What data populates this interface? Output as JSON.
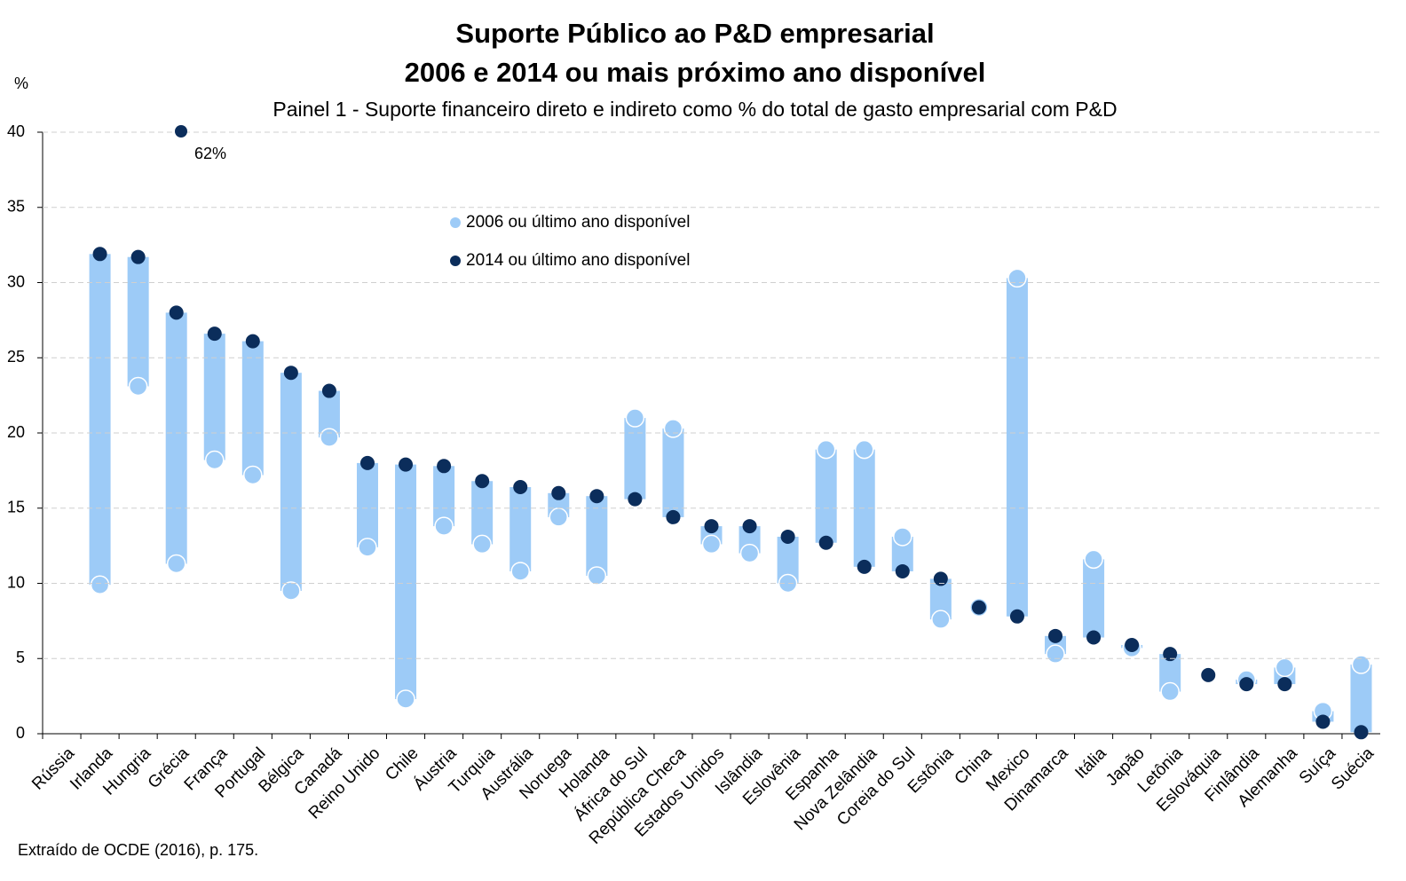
{
  "chart_data": {
    "type": "dumbbell",
    "title": "Suporte Público ao P&D empresarial",
    "title_line2": "2006 e 2014 ou mais próximo ano disponível",
    "subtitle": "Painel 1 - Suporte financeiro direto e indireto como % do total de gasto empresarial com P&D",
    "y_label": "%",
    "source": "Extraído de OCDE (2016), p. 175.",
    "categories": [
      "Rússia",
      "Irlanda",
      "Hungria",
      "Grécia",
      "França",
      "Portugal",
      "Bélgica",
      "Canadá",
      "Reino Unido",
      "Chile",
      "Áustria",
      "Turquia",
      "Austrália",
      "Noruega",
      "Holanda",
      "África do Sul",
      "República Checa",
      "Estados Unidos",
      "Islândia",
      "Eslovênia",
      "Espanha",
      "Nova Zelândia",
      "Coreia do Sul",
      "Estônia",
      "China",
      "Mexico",
      "Dinamarca",
      "Itália",
      "Japão",
      "Letônia",
      "Eslováquia",
      "Finlândia",
      "Alemanha",
      "Suíça",
      "Suécia"
    ],
    "series": [
      {
        "name": "2006 ou último ano disponível",
        "color": "#9dcbf7",
        "values": [
          null,
          9.9,
          23.1,
          11.3,
          18.2,
          17.2,
          9.5,
          19.7,
          12.4,
          2.3,
          13.8,
          12.6,
          10.8,
          14.4,
          10.5,
          21.0,
          20.3,
          12.6,
          12.0,
          10.0,
          18.9,
          18.9,
          13.1,
          7.6,
          8.4,
          30.3,
          5.3,
          11.6,
          5.7,
          2.8,
          null,
          3.6,
          4.4,
          1.5,
          4.6
        ]
      },
      {
        "name": "2014 ou último ano disponível",
        "color": "#0b2d5b",
        "values": [
          62,
          31.9,
          31.7,
          28.0,
          26.6,
          26.1,
          24.0,
          22.8,
          18.0,
          17.9,
          17.8,
          16.8,
          16.4,
          16.0,
          15.8,
          15.6,
          14.4,
          13.8,
          13.8,
          13.1,
          12.7,
          11.1,
          10.8,
          10.3,
          8.4,
          7.8,
          6.5,
          6.4,
          5.9,
          5.3,
          3.9,
          3.3,
          3.3,
          0.8,
          0.1
        ],
        "value_labels": [
          "62%",
          null,
          null,
          null,
          null,
          null,
          null,
          null,
          null,
          null,
          null,
          null,
          null,
          null,
          null,
          null,
          null,
          null,
          null,
          null,
          null,
          null,
          null,
          null,
          null,
          null,
          null,
          null,
          null,
          null,
          null,
          null,
          null,
          null,
          null
        ]
      }
    ],
    "bar_color": "#9dcbf7",
    "ylim": [
      0,
      40
    ],
    "yticks": [
      0,
      5,
      10,
      15,
      20,
      25,
      30,
      35,
      40
    ],
    "grid": true
  }
}
